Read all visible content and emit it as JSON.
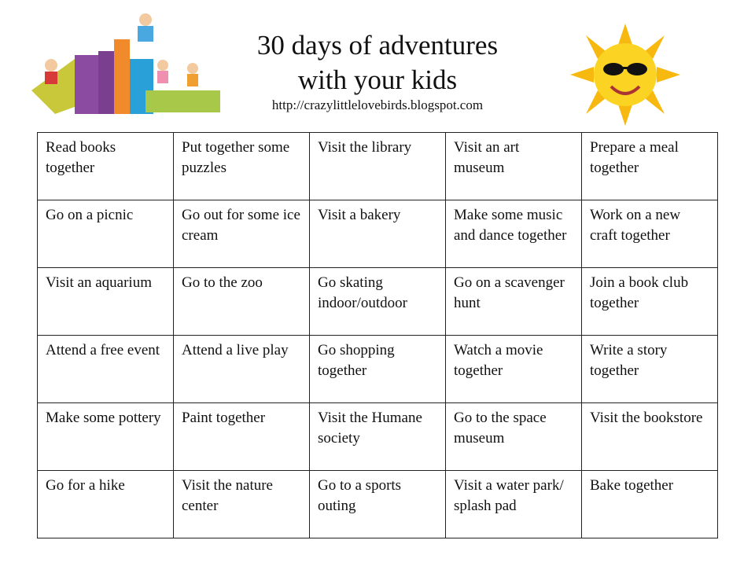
{
  "header": {
    "title_line1": "30 days of adventures",
    "title_line2": "with your kids",
    "url": "http://crazylittlelovebirds.blogspot.com"
  },
  "illustrations": [
    "books-and-kids",
    "sun-with-sunglasses"
  ],
  "table": {
    "rows": [
      [
        "Read books together",
        "Put together some puzzles",
        "Visit the library",
        "Visit an art museum",
        "Prepare a meal together"
      ],
      [
        "Go on a picnic",
        "Go out for some ice cream",
        "Visit a bakery",
        "Make some music and dance together",
        "Work on a new craft together"
      ],
      [
        "Visit an aquarium",
        "Go to the zoo",
        "Go skating indoor/outdoor",
        "Go on a scavenger hunt",
        "Join a book club together"
      ],
      [
        "Attend a free event",
        "Attend a live play",
        "Go shopping together",
        "Watch a movie together",
        "Write a story together"
      ],
      [
        "Make some pottery",
        "Paint together",
        "Visit the Humane society",
        "Go to the space museum",
        "Visit the bookstore"
      ],
      [
        "Go for a hike",
        "Visit the nature center",
        "Go to a sports outing",
        "Visit a water park/ splash pad",
        "Bake together"
      ]
    ]
  }
}
